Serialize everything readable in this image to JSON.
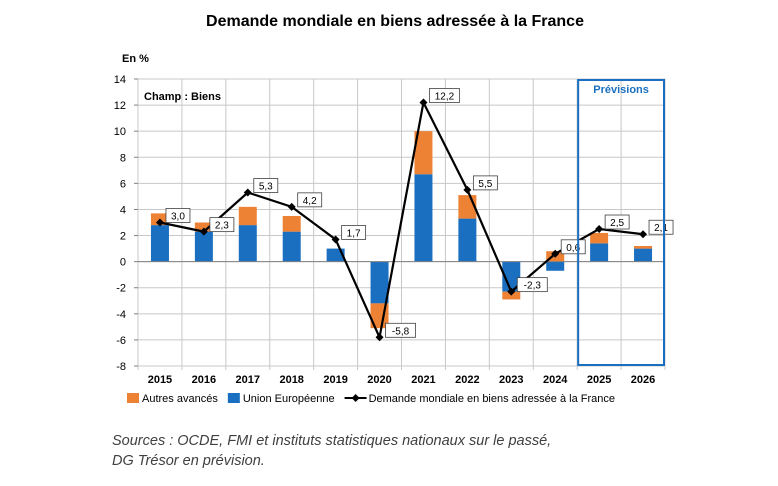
{
  "chart_data": {
    "type": "bar",
    "stacked": true,
    "title": "Demande mondiale en biens adressée à la France",
    "ylabel": "En %",
    "ylim": [
      -8,
      14
    ],
    "yticks": [
      -8,
      -6,
      -4,
      -2,
      0,
      2,
      4,
      6,
      8,
      10,
      12,
      14
    ],
    "grid": true,
    "annotation": "Champ : Biens",
    "forecast_label": "Prévisions",
    "forecast_categories": [
      "2025",
      "2026"
    ],
    "categories": [
      "2015",
      "2016",
      "2017",
      "2018",
      "2019",
      "2020",
      "2021",
      "2022",
      "2023",
      "2024",
      "2025",
      "2026"
    ],
    "series": [
      {
        "name": "Union Européenne",
        "kind": "bar",
        "color": "#1a6fc0",
        "values": [
          2.8,
          2.3,
          2.8,
          2.3,
          1.0,
          -3.2,
          6.7,
          3.3,
          -2.3,
          -0.7,
          1.4,
          1.0
        ]
      },
      {
        "name": "Autres avancés",
        "kind": "bar",
        "color": "#ee8234",
        "values": [
          0.9,
          0.7,
          1.4,
          1.2,
          0.0,
          -1.9,
          3.3,
          1.8,
          -0.6,
          0.8,
          0.8,
          0.2
        ]
      },
      {
        "name": "Demande mondiale en biens adressée à la France",
        "kind": "line",
        "color": "#000000",
        "values": [
          3.0,
          2.3,
          5.3,
          4.2,
          1.7,
          -5.8,
          12.2,
          5.5,
          -2.3,
          0.6,
          2.5,
          2.1
        ],
        "labels": [
          "3,0",
          "2,3",
          "5,3",
          "4,2",
          "1,7",
          "-5,8",
          "12,2",
          "5,5",
          "-2,3",
          "0,6",
          "2,5",
          "2,1"
        ]
      }
    ],
    "legend": [
      {
        "name": "Autres avancés",
        "color": "#ee8234",
        "kind": "bar"
      },
      {
        "name": "Union Européenne",
        "color": "#1a6fc0",
        "kind": "bar"
      },
      {
        "name": "Demande mondiale en biens adressée à la France",
        "color": "#000000",
        "kind": "line"
      }
    ]
  },
  "source": {
    "line1": "Sources : OCDE, FMI et instituts statistiques nationaux sur le passé,",
    "line2": "DG Trésor en prévision."
  }
}
